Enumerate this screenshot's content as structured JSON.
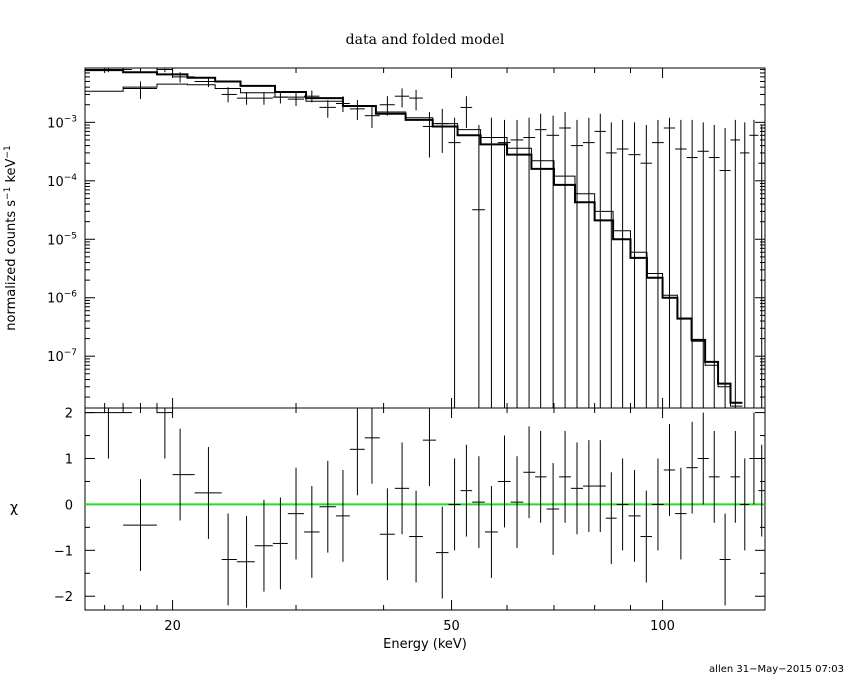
{
  "chart_data": [
    {
      "panel": "top",
      "type": "line",
      "title": "data and folded model",
      "xlabel": "",
      "ylabel_main": "normalized counts s",
      "ylabel_exp1": "−1",
      "ylabel_mid": " keV",
      "ylabel_exp2": "−1",
      "x_scale": "log",
      "y_scale": "log",
      "xlim": [
        15,
        140
      ],
      "ylim": [
        1.3e-08,
        0.0085
      ],
      "y_tick_labels": [
        {
          "value": 0.001,
          "mant": "10",
          "exp": "−3"
        },
        {
          "value": 0.0001,
          "mant": "10",
          "exp": "−4"
        },
        {
          "value": 1e-05,
          "mant": "10",
          "exp": "−5"
        },
        {
          "value": 1e-06,
          "mant": "10",
          "exp": "−6"
        },
        {
          "value": 1e-07,
          "mant": "10",
          "exp": "−7"
        }
      ],
      "data_points": [
        {
          "x": 16.2,
          "xlo": 15.0,
          "xhi": 17.5,
          "y": 0.008,
          "ylo": 0.0072,
          "yhi": 0.0085
        },
        {
          "x": 18.0,
          "xlo": 17.0,
          "xhi": 19.0,
          "y": 0.0038,
          "ylo": 0.0025,
          "yhi": 0.005
        },
        {
          "x": 19.5,
          "xlo": 19.0,
          "xhi": 20.0,
          "y": 0.008,
          "ylo": 0.0072,
          "yhi": 0.0085
        },
        {
          "x": 20.5,
          "xlo": 20.0,
          "xhi": 21.5,
          "y": 0.006,
          "ylo": 0.0048,
          "yhi": 0.0072
        },
        {
          "x": 22.5,
          "xlo": 21.5,
          "xhi": 23.5,
          "y": 0.005,
          "ylo": 0.004,
          "yhi": 0.006
        },
        {
          "x": 24.0,
          "xlo": 23.5,
          "xhi": 24.7,
          "y": 0.003,
          "ylo": 0.0022,
          "yhi": 0.004
        },
        {
          "x": 25.5,
          "xlo": 24.7,
          "xhi": 26.2,
          "y": 0.0026,
          "ylo": 0.002,
          "yhi": 0.0033
        },
        {
          "x": 27.0,
          "xlo": 26.2,
          "xhi": 27.8,
          "y": 0.0026,
          "ylo": 0.002,
          "yhi": 0.0033
        },
        {
          "x": 28.5,
          "xlo": 27.8,
          "xhi": 29.2,
          "y": 0.0027,
          "ylo": 0.0021,
          "yhi": 0.0034
        },
        {
          "x": 30.0,
          "xlo": 29.2,
          "xhi": 30.8,
          "y": 0.0025,
          "ylo": 0.0019,
          "yhi": 0.0032
        },
        {
          "x": 31.6,
          "xlo": 30.8,
          "xhi": 32.4,
          "y": 0.0028,
          "ylo": 0.0022,
          "yhi": 0.0035
        },
        {
          "x": 33.3,
          "xlo": 32.4,
          "xhi": 34.2,
          "y": 0.0018,
          "ylo": 0.0012,
          "yhi": 0.0024
        },
        {
          "x": 35.0,
          "xlo": 34.2,
          "xhi": 35.8,
          "y": 0.0021,
          "ylo": 0.0015,
          "yhi": 0.0028
        },
        {
          "x": 36.7,
          "xlo": 35.8,
          "xhi": 37.6,
          "y": 0.0017,
          "ylo": 0.0011,
          "yhi": 0.0024
        },
        {
          "x": 38.5,
          "xlo": 37.6,
          "xhi": 39.5,
          "y": 0.0013,
          "ylo": 0.0008,
          "yhi": 0.0019
        },
        {
          "x": 40.5,
          "xlo": 39.5,
          "xhi": 41.5,
          "y": 0.002,
          "ylo": 0.0013,
          "yhi": 0.0028
        },
        {
          "x": 42.5,
          "xlo": 41.5,
          "xhi": 43.5,
          "y": 0.0028,
          "ylo": 0.0018,
          "yhi": 0.0038
        },
        {
          "x": 44.5,
          "xlo": 43.5,
          "xhi": 45.5,
          "y": 0.0026,
          "ylo": 0.0016,
          "yhi": 0.0036
        },
        {
          "x": 46.5,
          "xlo": 45.5,
          "xhi": 47.5,
          "y": 0.00085,
          "ylo": 0.00025,
          "yhi": 0.0015
        },
        {
          "x": 48.5,
          "xlo": 47.5,
          "xhi": 49.5,
          "y": 0.00095,
          "ylo": 0.0003,
          "yhi": 0.0017
        },
        {
          "x": 50.5,
          "xlo": 49.5,
          "xhi": 51.5,
          "y": 0.00045,
          "ylo": 1.3e-08,
          "yhi": 0.0012
        },
        {
          "x": 52.5,
          "xlo": 51.5,
          "xhi": 53.5,
          "y": 0.0018,
          "ylo": 0.0008,
          "yhi": 0.0028
        },
        {
          "x": 54.7,
          "xlo": 53.5,
          "xhi": 55.8,
          "y": 3.2e-05,
          "ylo": 1.3e-08,
          "yhi": 0.0009
        },
        {
          "x": 57.0,
          "xlo": 55.8,
          "xhi": 58.2,
          "y": 0.00055,
          "ylo": 1.3e-08,
          "yhi": 0.0012
        },
        {
          "x": 59.5,
          "xlo": 58.2,
          "xhi": 60.7,
          "y": 0.00045,
          "ylo": 1.3e-08,
          "yhi": 0.0011
        },
        {
          "x": 62.0,
          "xlo": 60.7,
          "xhi": 63.3,
          "y": 0.0005,
          "ylo": 1.3e-08,
          "yhi": 0.0011
        },
        {
          "x": 64.5,
          "xlo": 63.3,
          "xhi": 65.8,
          "y": 0.00055,
          "ylo": 1.3e-08,
          "yhi": 0.0012
        },
        {
          "x": 67.0,
          "xlo": 65.8,
          "xhi": 68.3,
          "y": 0.00075,
          "ylo": 1.3e-08,
          "yhi": 0.0014
        },
        {
          "x": 69.8,
          "xlo": 68.3,
          "xhi": 71.2,
          "y": 0.0006,
          "ylo": 1.3e-08,
          "yhi": 0.0013
        },
        {
          "x": 72.6,
          "xlo": 71.2,
          "xhi": 74.0,
          "y": 0.0008,
          "ylo": 1.3e-08,
          "yhi": 0.0015
        },
        {
          "x": 75.5,
          "xlo": 74.0,
          "xhi": 77.0,
          "y": 0.0004,
          "ylo": 1.3e-08,
          "yhi": 0.0011
        },
        {
          "x": 78.5,
          "xlo": 77.0,
          "xhi": 80.0,
          "y": 0.00045,
          "ylo": 1.3e-08,
          "yhi": 0.0012
        },
        {
          "x": 81.5,
          "xlo": 80.0,
          "xhi": 83.0,
          "y": 0.0007,
          "ylo": 1.3e-08,
          "yhi": 0.0014
        },
        {
          "x": 84.5,
          "xlo": 83.0,
          "xhi": 86.0,
          "y": 0.0003,
          "ylo": 1.3e-08,
          "yhi": 0.001
        },
        {
          "x": 87.7,
          "xlo": 86.0,
          "xhi": 89.4,
          "y": 0.00035,
          "ylo": 1.3e-08,
          "yhi": 0.0011
        },
        {
          "x": 91.2,
          "xlo": 89.4,
          "xhi": 93.0,
          "y": 0.00028,
          "ylo": 1.3e-08,
          "yhi": 0.001
        },
        {
          "x": 94.8,
          "xlo": 93.0,
          "xhi": 96.6,
          "y": 0.0002,
          "ylo": 1.3e-08,
          "yhi": 0.0009
        },
        {
          "x": 98.5,
          "xlo": 96.6,
          "xhi": 100.4,
          "y": 0.00045,
          "ylo": 1.3e-08,
          "yhi": 0.0011
        },
        {
          "x": 102.3,
          "xlo": 100.4,
          "xhi": 104.2,
          "y": 0.0008,
          "ylo": 1.3e-08,
          "yhi": 0.0012
        },
        {
          "x": 106.2,
          "xlo": 104.2,
          "xhi": 108.2,
          "y": 0.00035,
          "ylo": 1.3e-08,
          "yhi": 0.0011
        },
        {
          "x": 110.2,
          "xlo": 108.2,
          "xhi": 112.2,
          "y": 0.00025,
          "ylo": 1.3e-08,
          "yhi": 0.0011
        },
        {
          "x": 114.3,
          "xlo": 112.2,
          "xhi": 116.4,
          "y": 0.00032,
          "ylo": 1.3e-08,
          "yhi": 0.001
        },
        {
          "x": 118.5,
          "xlo": 116.4,
          "xhi": 120.6,
          "y": 0.00025,
          "ylo": 1.3e-08,
          "yhi": 0.0009
        },
        {
          "x": 122.8,
          "xlo": 120.6,
          "xhi": 125.0,
          "y": 0.00015,
          "ylo": 1.3e-08,
          "yhi": 0.0008
        },
        {
          "x": 127.0,
          "xlo": 125.0,
          "xhi": 129.0,
          "y": 0.0005,
          "ylo": 1.3e-08,
          "yhi": 0.0011
        },
        {
          "x": 131.0,
          "xlo": 129.0,
          "xhi": 133.0,
          "y": 0.0003,
          "ylo": 1.3e-08,
          "yhi": 0.001
        },
        {
          "x": 135.0,
          "xlo": 133.0,
          "xhi": 137.0,
          "y": 0.0006,
          "ylo": 1.3e-08,
          "yhi": 0.0011
        },
        {
          "x": 138.5,
          "xlo": 137.0,
          "xhi": 140.0,
          "y": 0.0002,
          "ylo": 1.3e-08,
          "yhi": 0.0009
        }
      ],
      "model_thin": [
        [
          15.0,
          0.0034
        ],
        [
          17.0,
          0.004
        ],
        [
          19.0,
          0.0045
        ],
        [
          21.0,
          0.0044
        ],
        [
          23.0,
          0.0038
        ],
        [
          25.0,
          0.0032
        ],
        [
          28.0,
          0.0027
        ],
        [
          31.0,
          0.0023
        ],
        [
          35.0,
          0.0019
        ],
        [
          39.0,
          0.0015
        ],
        [
          43.0,
          0.0012
        ],
        [
          47.0,
          0.00095
        ],
        [
          51.0,
          0.00075
        ],
        [
          55.0,
          0.00055
        ],
        [
          60.0,
          0.00036
        ],
        [
          65.0,
          0.00022
        ],
        [
          70.0,
          0.00012
        ],
        [
          75.0,
          6e-05
        ],
        [
          80.0,
          3e-05
        ],
        [
          85.0,
          1.4e-05
        ],
        [
          90.0,
          6e-06
        ],
        [
          95.0,
          2.6e-06
        ],
        [
          100.0,
          1.1e-06
        ],
        [
          105.0,
          4.5e-07
        ],
        [
          110.0,
          1.8e-07
        ],
        [
          115.0,
          7e-08
        ],
        [
          120.0,
          3e-08
        ],
        [
          125.0,
          1.4e-08
        ],
        [
          130.0,
          1.3e-08
        ]
      ],
      "model_thick": [
        [
          15.0,
          0.0078
        ],
        [
          17.0,
          0.0072
        ],
        [
          19.0,
          0.0066
        ],
        [
          21.0,
          0.0058
        ],
        [
          23.0,
          0.005
        ],
        [
          25.0,
          0.0042
        ],
        [
          28.0,
          0.0033
        ],
        [
          31.0,
          0.0026
        ],
        [
          35.0,
          0.0019
        ],
        [
          39.0,
          0.0014
        ],
        [
          43.0,
          0.0011
        ],
        [
          47.0,
          0.00085
        ],
        [
          51.0,
          0.0006
        ],
        [
          55.0,
          0.00042
        ],
        [
          60.0,
          0.00028
        ],
        [
          65.0,
          0.00016
        ],
        [
          70.0,
          8.5e-05
        ],
        [
          75.0,
          4.3e-05
        ],
        [
          80.0,
          2.1e-05
        ],
        [
          85.0,
          1e-05
        ],
        [
          90.0,
          4.8e-06
        ],
        [
          95.0,
          2.2e-06
        ],
        [
          100.0,
          1e-06
        ],
        [
          105.0,
          4.4e-07
        ],
        [
          110.0,
          1.9e-07
        ],
        [
          115.0,
          8e-08
        ],
        [
          120.0,
          3.4e-08
        ],
        [
          125.0,
          1.6e-08
        ],
        [
          130.0,
          1.3e-08
        ]
      ]
    },
    {
      "panel": "bottom",
      "type": "scatter",
      "xlabel": "Energy (keV)",
      "ylabel": "χ",
      "x_scale": "log",
      "xlim": [
        15,
        140
      ],
      "ylim": [
        -2.3,
        2.1
      ],
      "x_tick_labels": [
        {
          "value": 20,
          "label": "20"
        },
        {
          "value": 50,
          "label": "50"
        },
        {
          "value": 100,
          "label": "100"
        }
      ],
      "y_tick_labels": [
        {
          "value": 2,
          "label": "2"
        },
        {
          "value": 1,
          "label": "1"
        },
        {
          "value": 0,
          "label": "0"
        },
        {
          "value": -1,
          "label": "−1"
        },
        {
          "value": -2,
          "label": "−2"
        }
      ],
      "zero_line": {
        "value": 0,
        "color": "#22dd22"
      },
      "residuals": [
        {
          "x": 16.2,
          "xlo": 15.0,
          "xhi": 17.5,
          "y": 2.0,
          "err": 1.0
        },
        {
          "x": 18.0,
          "xlo": 17.0,
          "xhi": 19.0,
          "y": -0.45,
          "err": 1.0
        },
        {
          "x": 19.5,
          "xlo": 19.0,
          "xhi": 20.0,
          "y": 2.0,
          "err": 1.0
        },
        {
          "x": 20.5,
          "xlo": 20.0,
          "xhi": 21.5,
          "y": 0.65,
          "err": 1.0
        },
        {
          "x": 22.5,
          "xlo": 21.5,
          "xhi": 23.5,
          "y": 0.25,
          "err": 1.0
        },
        {
          "x": 24.0,
          "xlo": 23.5,
          "xhi": 24.7,
          "y": -1.2,
          "err": 1.0
        },
        {
          "x": 25.5,
          "xlo": 24.7,
          "xhi": 26.2,
          "y": -1.25,
          "err": 1.0
        },
        {
          "x": 27.0,
          "xlo": 26.2,
          "xhi": 27.8,
          "y": -0.9,
          "err": 1.0
        },
        {
          "x": 28.5,
          "xlo": 27.8,
          "xhi": 29.2,
          "y": -0.85,
          "err": 1.0
        },
        {
          "x": 30.0,
          "xlo": 29.2,
          "xhi": 30.8,
          "y": -0.2,
          "err": 1.0
        },
        {
          "x": 31.6,
          "xlo": 30.8,
          "xhi": 32.4,
          "y": -0.6,
          "err": 1.0
        },
        {
          "x": 33.3,
          "xlo": 32.4,
          "xhi": 34.2,
          "y": -0.05,
          "err": 1.0
        },
        {
          "x": 35.0,
          "xlo": 34.2,
          "xhi": 35.8,
          "y": -0.25,
          "err": 1.0
        },
        {
          "x": 36.7,
          "xlo": 35.8,
          "xhi": 37.6,
          "y": 1.2,
          "err": 1.0
        },
        {
          "x": 38.5,
          "xlo": 37.6,
          "xhi": 39.5,
          "y": 1.45,
          "err": 1.0
        },
        {
          "x": 40.5,
          "xlo": 39.5,
          "xhi": 41.5,
          "y": -0.65,
          "err": 1.0
        },
        {
          "x": 42.5,
          "xlo": 41.5,
          "xhi": 43.5,
          "y": 0.35,
          "err": 1.0
        },
        {
          "x": 44.5,
          "xlo": 43.5,
          "xhi": 45.5,
          "y": -0.7,
          "err": 1.0
        },
        {
          "x": 46.5,
          "xlo": 45.5,
          "xhi": 47.5,
          "y": 1.4,
          "err": 1.0
        },
        {
          "x": 48.5,
          "xlo": 47.5,
          "xhi": 49.5,
          "y": -1.05,
          "err": 1.0
        },
        {
          "x": 50.5,
          "xlo": 49.5,
          "xhi": 51.5,
          "y": 0.0,
          "err": 1.0
        },
        {
          "x": 52.5,
          "xlo": 51.5,
          "xhi": 53.5,
          "y": 0.3,
          "err": 1.0
        },
        {
          "x": 54.7,
          "xlo": 53.5,
          "xhi": 55.8,
          "y": 0.05,
          "err": 1.0
        },
        {
          "x": 57.0,
          "xlo": 55.8,
          "xhi": 58.2,
          "y": -0.6,
          "err": 1.0
        },
        {
          "x": 59.5,
          "xlo": 58.2,
          "xhi": 60.7,
          "y": 0.5,
          "err": 1.0
        },
        {
          "x": 62.0,
          "xlo": 60.7,
          "xhi": 63.3,
          "y": 0.05,
          "err": 1.0
        },
        {
          "x": 64.5,
          "xlo": 63.3,
          "xhi": 65.8,
          "y": 0.7,
          "err": 1.0
        },
        {
          "x": 67.0,
          "xlo": 65.8,
          "xhi": 68.3,
          "y": 0.6,
          "err": 1.0
        },
        {
          "x": 69.8,
          "xlo": 68.3,
          "xhi": 71.2,
          "y": -0.1,
          "err": 1.0
        },
        {
          "x": 72.6,
          "xlo": 71.2,
          "xhi": 74.0,
          "y": 0.6,
          "err": 1.0
        },
        {
          "x": 75.5,
          "xlo": 74.0,
          "xhi": 77.0,
          "y": 0.35,
          "err": 1.0
        },
        {
          "x": 78.5,
          "xlo": 77.0,
          "xhi": 80.0,
          "y": 0.4,
          "err": 1.0
        },
        {
          "x": 81.5,
          "xlo": 80.0,
          "xhi": 83.0,
          "y": 0.4,
          "err": 1.0
        },
        {
          "x": 84.5,
          "xlo": 83.0,
          "xhi": 86.0,
          "y": -0.3,
          "err": 1.0
        },
        {
          "x": 87.7,
          "xlo": 86.0,
          "xhi": 89.4,
          "y": 0.0,
          "err": 1.0
        },
        {
          "x": 91.2,
          "xlo": 89.4,
          "xhi": 93.0,
          "y": -0.25,
          "err": 1.0
        },
        {
          "x": 94.8,
          "xlo": 93.0,
          "xhi": 96.6,
          "y": -0.7,
          "err": 1.0
        },
        {
          "x": 98.5,
          "xlo": 96.6,
          "xhi": 100.4,
          "y": 0.0,
          "err": 1.0
        },
        {
          "x": 102.3,
          "xlo": 100.4,
          "xhi": 104.2,
          "y": 0.75,
          "err": 1.0
        },
        {
          "x": 106.2,
          "xlo": 104.2,
          "xhi": 108.2,
          "y": -0.2,
          "err": 1.0
        },
        {
          "x": 110.2,
          "xlo": 108.2,
          "xhi": 112.2,
          "y": 0.8,
          "err": 1.0
        },
        {
          "x": 114.3,
          "xlo": 112.2,
          "xhi": 116.4,
          "y": 1.0,
          "err": 1.0
        },
        {
          "x": 118.5,
          "xlo": 116.4,
          "xhi": 120.6,
          "y": 0.6,
          "err": 1.0
        },
        {
          "x": 122.8,
          "xlo": 120.6,
          "xhi": 125.0,
          "y": -1.2,
          "err": 1.0
        },
        {
          "x": 127.0,
          "xlo": 125.0,
          "xhi": 129.0,
          "y": 0.6,
          "err": 1.0
        },
        {
          "x": 131.0,
          "xlo": 129.0,
          "xhi": 133.0,
          "y": 0.0,
          "err": 1.0
        },
        {
          "x": 135.0,
          "xlo": 133.0,
          "xhi": 137.0,
          "y": 1.0,
          "err": 1.0
        },
        {
          "x": 138.5,
          "xlo": 137.0,
          "xhi": 140.0,
          "y": 0.3,
          "err": 1.0
        }
      ]
    }
  ],
  "footer": "allen 31−May−2015 07:03"
}
